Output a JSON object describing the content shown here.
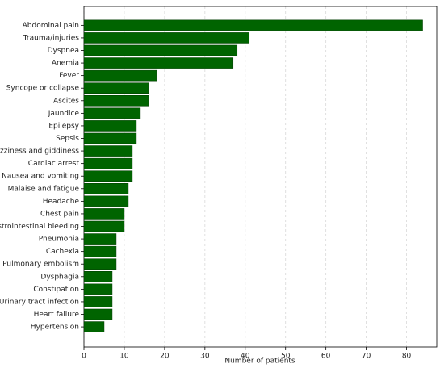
{
  "chart_data": {
    "type": "barh",
    "x_label": "Number of patients",
    "categories": [
      "Abdominal pain",
      "Trauma/injuries",
      "Dyspnea",
      "Anemia",
      "Fever",
      "Syncope or collapse",
      "Ascites",
      "Jaundice",
      "Epilepsy",
      "Sepsis",
      "Dizziness and giddiness",
      "Cardiac arrest",
      "Nausea and vomiting",
      "Malaise and fatigue",
      "Headache",
      "Chest pain",
      "Gastrointestinal bleeding",
      "Pneumonia",
      "Cachexia",
      "Pulmonary embolism",
      "Dysphagia",
      "Constipation",
      "Urinary tract infection",
      "Heart failure",
      "Hypertension"
    ],
    "values": [
      84,
      41,
      38,
      37,
      18,
      16,
      16,
      14,
      13,
      13,
      12,
      12,
      12,
      11,
      11,
      10,
      10,
      8,
      8,
      8,
      7,
      7,
      7,
      7,
      5
    ],
    "color": "#006400",
    "xlim": [
      0,
      87.5
    ],
    "xticks": [
      0,
      10,
      20,
      30,
      40,
      50,
      60,
      70,
      80
    ],
    "grid": true
  }
}
